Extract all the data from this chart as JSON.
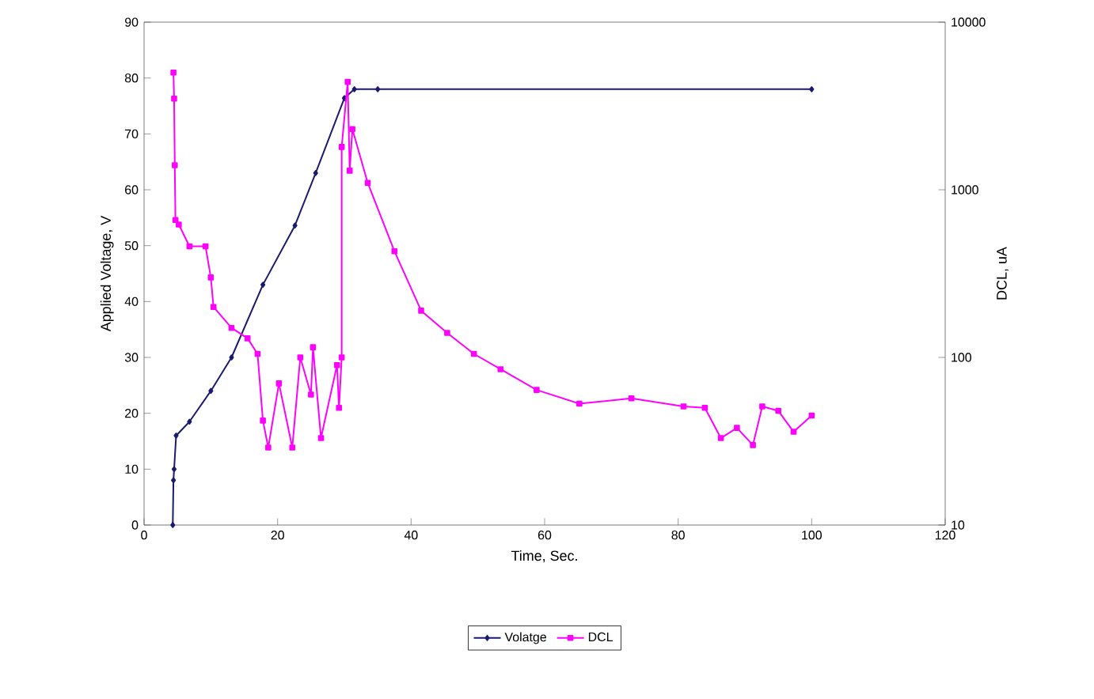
{
  "chart_data": {
    "type": "line",
    "xlabel": "Time, Sec.",
    "ylabel": "Applied Voltage, V",
    "y2label": "DCL, uA",
    "xlim": [
      0,
      120
    ],
    "xticks": [
      0,
      20,
      40,
      60,
      80,
      100,
      120
    ],
    "ylim": [
      0,
      90
    ],
    "yticks": [
      0,
      10,
      20,
      30,
      40,
      50,
      60,
      70,
      80,
      90
    ],
    "y2lim": [
      10,
      10000
    ],
    "y2ticks": [
      10,
      100,
      1000,
      10000
    ],
    "log": "y2",
    "legend": "bottom",
    "grid": false,
    "series": [
      {
        "name": "Volatge",
        "color": "#1a1a6e",
        "marker": "diamond",
        "x": [
          4.3,
          4.4,
          4.5,
          4.8,
          6.8,
          10,
          13.1,
          17.8,
          22.6,
          25.7,
          30,
          31.5,
          35,
          100
        ],
        "values": [
          0,
          8,
          10,
          16,
          18.5,
          24,
          30,
          43,
          53.6,
          63,
          76.4,
          78,
          78,
          78
        ]
      },
      {
        "name": "DCL",
        "color": "#ff00ff",
        "marker": "square",
        "axis": "y2",
        "x": [
          4.4,
          4.5,
          4.6,
          4.7,
          5.2,
          6.8,
          9.2,
          10,
          10.4,
          13.1,
          15.5,
          17,
          17.8,
          18.6,
          20.2,
          22.2,
          23.4,
          25,
          25.3,
          26.5,
          28.9,
          29.2,
          29.6,
          29.6,
          30.5,
          30.8,
          31.2,
          33.5,
          37.5,
          41.5,
          45.4,
          49.4,
          53.4,
          58.8,
          65.2,
          73,
          80.8,
          84,
          86.4,
          88.8,
          91.2,
          92.6,
          95,
          97.3,
          100
        ],
        "values": [
          5000,
          3500,
          1400,
          660,
          620,
          460,
          460,
          300,
          200,
          150,
          130,
          105,
          42,
          29,
          70,
          29,
          100,
          60,
          115,
          33,
          90,
          50,
          100,
          1800,
          4400,
          1300,
          2300,
          1100,
          430,
          190,
          140,
          105,
          85,
          64,
          53,
          57,
          51,
          50,
          33,
          38,
          30,
          51,
          48,
          36,
          45
        ]
      }
    ]
  }
}
